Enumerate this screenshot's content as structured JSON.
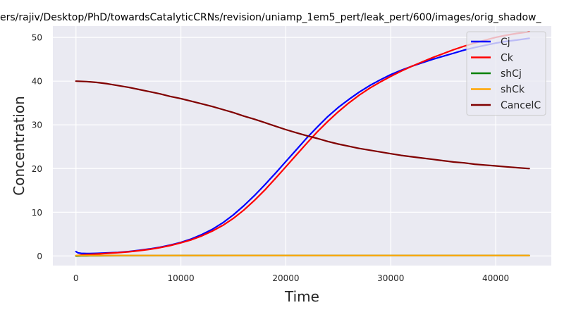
{
  "chart_data": {
    "type": "line",
    "title": "ers/rajiv/Desktop/PhD/towardsCatalyticCRNs/revision/uniamp_1em5_pert/leak_pert/600/images/orig_shadow_",
    "xlabel": "Time",
    "ylabel": "Concentration",
    "xlim": [
      -2200,
      45300
    ],
    "ylim": [
      -2.2,
      52.6
    ],
    "xticks": [
      0,
      10000,
      20000,
      30000,
      40000
    ],
    "yticks": [
      0,
      10,
      20,
      30,
      40,
      50
    ],
    "grid": true,
    "legend_position": "top-right",
    "colors": {
      "background": "#eaeaf2",
      "grid": "#ffffff",
      "text": "#262626"
    },
    "series": [
      {
        "name": "Cj",
        "color": "#0000ff",
        "x": [
          0,
          200,
          500,
          1000,
          2000,
          3000,
          4000,
          5000,
          6000,
          7000,
          8000,
          9000,
          10000,
          11000,
          12000,
          13000,
          14000,
          15000,
          16000,
          17000,
          18000,
          19000,
          20000,
          21000,
          22000,
          23000,
          24000,
          25000,
          26000,
          27000,
          28000,
          29000,
          30000,
          31000,
          32000,
          33000,
          34000,
          35000,
          36000,
          37000,
          38000,
          39000,
          40000,
          41000,
          42000,
          43200
        ],
        "y": [
          1.0,
          0.7,
          0.6,
          0.55,
          0.6,
          0.7,
          0.8,
          1.0,
          1.3,
          1.6,
          2.0,
          2.5,
          3.1,
          3.9,
          4.9,
          6.1,
          7.6,
          9.4,
          11.5,
          13.8,
          16.3,
          18.9,
          21.6,
          24.3,
          27.0,
          29.5,
          31.9,
          34.0,
          35.8,
          37.5,
          39.0,
          40.3,
          41.5,
          42.5,
          43.4,
          44.2,
          45.0,
          45.7,
          46.4,
          47.1,
          47.7,
          48.2,
          48.7,
          49.1,
          49.4,
          49.8
        ]
      },
      {
        "name": "Ck",
        "color": "#ff0000",
        "x": [
          0,
          200,
          500,
          1000,
          2000,
          3000,
          4000,
          5000,
          6000,
          7000,
          8000,
          9000,
          10000,
          11000,
          12000,
          13000,
          14000,
          15000,
          16000,
          17000,
          18000,
          19000,
          20000,
          21000,
          22000,
          23000,
          24000,
          25000,
          26000,
          27000,
          28000,
          29000,
          30000,
          31000,
          32000,
          33000,
          34000,
          35000,
          36000,
          37000,
          38000,
          39000,
          40000,
          41000,
          42000,
          43200
        ],
        "y": [
          0.05,
          0.1,
          0.2,
          0.3,
          0.45,
          0.6,
          0.75,
          0.95,
          1.2,
          1.5,
          1.9,
          2.4,
          3.0,
          3.7,
          4.6,
          5.7,
          7.0,
          8.6,
          10.5,
          12.7,
          15.1,
          17.7,
          20.4,
          23.1,
          25.8,
          28.4,
          30.8,
          33.0,
          35.0,
          36.8,
          38.4,
          39.8,
          41.1,
          42.3,
          43.4,
          44.4,
          45.4,
          46.3,
          47.2,
          48.0,
          48.7,
          49.4,
          50.0,
          50.5,
          50.9,
          51.3
        ]
      },
      {
        "name": "shCj",
        "color": "#008000",
        "x": [
          0,
          500,
          1000,
          2000,
          4000,
          8000,
          15000,
          25000,
          35000,
          43200
        ],
        "y": [
          0.0,
          0.02,
          0.04,
          0.06,
          0.08,
          0.09,
          0.1,
          0.1,
          0.1,
          0.1
        ]
      },
      {
        "name": "shCk",
        "color": "#ffa500",
        "x": [
          0,
          500,
          1000,
          2000,
          4000,
          8000,
          15000,
          25000,
          35000,
          43200
        ],
        "y": [
          0.1,
          0.1,
          0.1,
          0.1,
          0.1,
          0.1,
          0.1,
          0.1,
          0.1,
          0.1
        ]
      },
      {
        "name": "CancelC",
        "color": "#800000",
        "x": [
          0,
          1000,
          2000,
          3000,
          4000,
          5000,
          6000,
          7000,
          8000,
          9000,
          10000,
          11000,
          12000,
          13000,
          14000,
          15000,
          16000,
          17000,
          18000,
          19000,
          20000,
          21000,
          22000,
          23000,
          24000,
          25000,
          26000,
          27000,
          28000,
          29000,
          30000,
          31000,
          32000,
          33000,
          34000,
          35000,
          36000,
          37000,
          38000,
          39000,
          40000,
          41000,
          42000,
          43200
        ],
        "y": [
          40.0,
          39.9,
          39.7,
          39.4,
          39.0,
          38.6,
          38.1,
          37.6,
          37.1,
          36.5,
          36.0,
          35.4,
          34.8,
          34.2,
          33.5,
          32.8,
          32.0,
          31.3,
          30.5,
          29.7,
          28.9,
          28.2,
          27.5,
          26.9,
          26.2,
          25.6,
          25.1,
          24.6,
          24.2,
          23.8,
          23.4,
          23.0,
          22.7,
          22.4,
          22.1,
          21.8,
          21.5,
          21.3,
          21.0,
          20.8,
          20.6,
          20.4,
          20.2,
          20.0
        ]
      }
    ]
  }
}
